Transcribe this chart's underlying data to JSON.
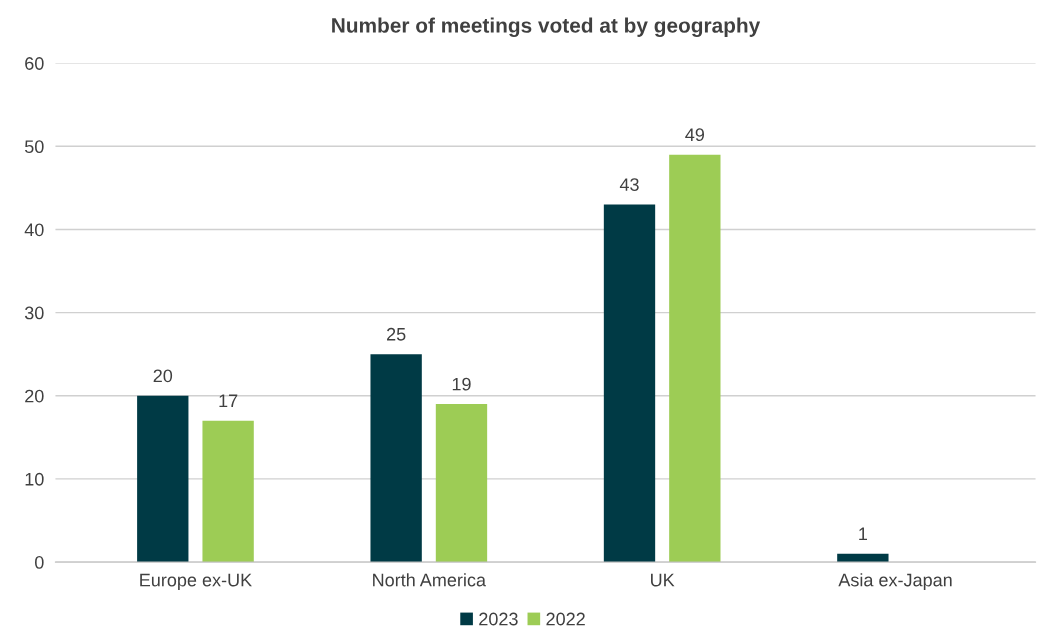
{
  "chart_data": {
    "type": "bar",
    "title": "Number of meetings voted at by geography",
    "categories": [
      "Europe ex-UK",
      "North America",
      "UK",
      "Asia ex-Japan"
    ],
    "series": [
      {
        "name": "2023",
        "color": "#003a45",
        "values": [
          20,
          25,
          43,
          1
        ]
      },
      {
        "name": "2022",
        "color": "#9dcc55",
        "values": [
          17,
          19,
          49,
          null
        ]
      }
    ],
    "ylim": [
      0,
      60
    ],
    "yticks": [
      0,
      10,
      20,
      30,
      40,
      50,
      60
    ],
    "grid": "y",
    "legend": "bottom",
    "data_labels": true
  }
}
